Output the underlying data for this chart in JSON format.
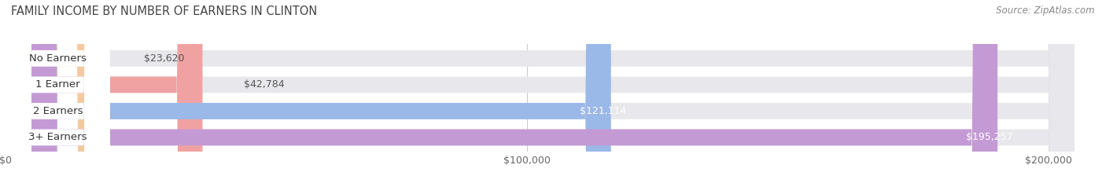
{
  "title": "FAMILY INCOME BY NUMBER OF EARNERS IN CLINTON",
  "source": "Source: ZipAtlas.com",
  "categories": [
    "No Earners",
    "1 Earner",
    "2 Earners",
    "3+ Earners"
  ],
  "values": [
    23620,
    42784,
    121114,
    195257
  ],
  "bar_colors": [
    "#f5c9a0",
    "#f0a2a2",
    "#9ab8e8",
    "#c49ad4"
  ],
  "label_colors": [
    "#555555",
    "#555555",
    "#ffffff",
    "#ffffff"
  ],
  "label_values": [
    "$23,620",
    "$42,784",
    "$121,114",
    "$195,257"
  ],
  "bar_bg_color": "#e8e8ec",
  "xlim_max": 210000,
  "xticks": [
    0,
    100000,
    200000
  ],
  "xtick_labels": [
    "$0",
    "$100,000",
    "$200,000"
  ],
  "title_fontsize": 10.5,
  "source_fontsize": 8.5,
  "label_fontsize": 9,
  "tick_fontsize": 9,
  "category_fontsize": 9.5,
  "bar_height": 0.62,
  "background_color": "#ffffff",
  "white_label_bg": "#ffffff"
}
